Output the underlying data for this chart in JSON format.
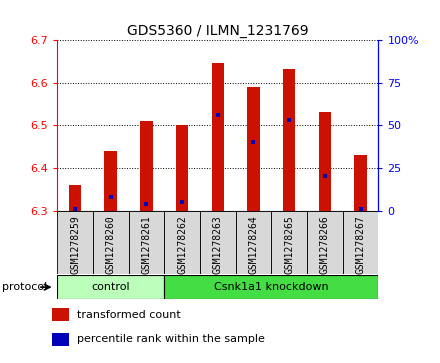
{
  "title": "GDS5360 / ILMN_1231769",
  "samples": [
    "GSM1278259",
    "GSM1278260",
    "GSM1278261",
    "GSM1278262",
    "GSM1278263",
    "GSM1278264",
    "GSM1278265",
    "GSM1278266",
    "GSM1278267"
  ],
  "transformed_count": [
    6.36,
    6.44,
    6.51,
    6.5,
    6.645,
    6.59,
    6.633,
    6.53,
    6.43
  ],
  "percentile_rank": [
    1,
    8,
    4,
    5,
    56,
    40,
    53,
    20,
    1
  ],
  "ylim_left": [
    6.3,
    6.7
  ],
  "ylim_right": [
    0,
    100
  ],
  "yticks_left": [
    6.3,
    6.4,
    6.5,
    6.6,
    6.7
  ],
  "yticks_right": [
    0,
    25,
    50,
    75,
    100
  ],
  "bar_color": "#cc1100",
  "dot_color": "#0000bb",
  "bar_bottom": 6.3,
  "groups": [
    {
      "label": "control",
      "start": 0,
      "end": 3,
      "color": "#bbffbb"
    },
    {
      "label": "Csnk1a1 knockdown",
      "start": 3,
      "end": 9,
      "color": "#44dd44"
    }
  ],
  "bar_width": 0.35,
  "protocol_label": "protocol",
  "legend_items": [
    {
      "label": "transformed count",
      "color": "#cc1100"
    },
    {
      "label": "percentile rank within the sample",
      "color": "#0000bb"
    }
  ],
  "background_color": "#d8d8d8",
  "plot_bg": "#ffffff"
}
